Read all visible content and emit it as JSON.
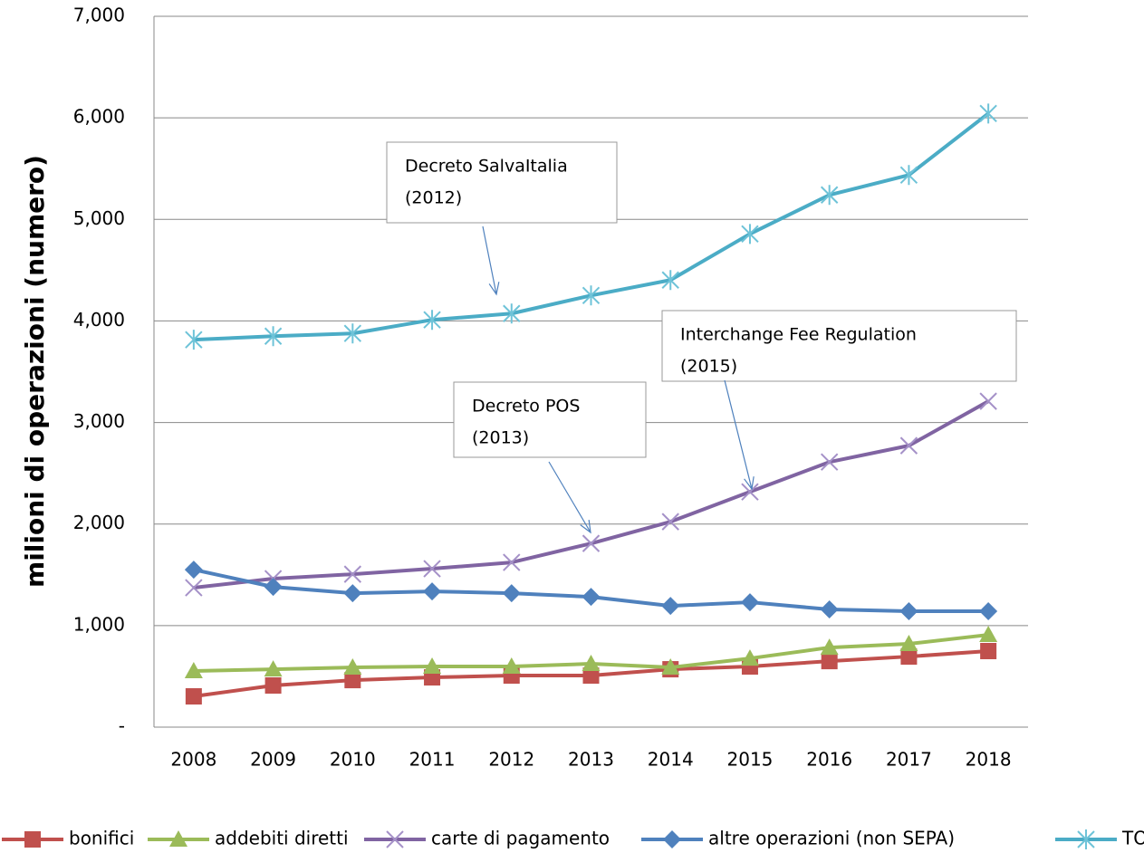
{
  "chart_data": {
    "type": "line",
    "y_label": "milioni di operazioni (numero)",
    "categories": [
      "2008",
      "2009",
      "2010",
      "2011",
      "2012",
      "2013",
      "2014",
      "2015",
      "2016",
      "2017",
      "2018"
    ],
    "ylim": [
      0,
      7000
    ],
    "yticks": [
      {
        "value": 0,
        "label": "-"
      },
      {
        "value": 1000,
        "label": "1,000"
      },
      {
        "value": 2000,
        "label": "2,000"
      },
      {
        "value": 3000,
        "label": "3,000"
      },
      {
        "value": 4000,
        "label": "4,000"
      },
      {
        "value": 5000,
        "label": "5,000"
      },
      {
        "value": 6000,
        "label": "6,000"
      },
      {
        "value": 7000,
        "label": "7,000"
      }
    ],
    "grid": true,
    "legend": "bottom",
    "series": [
      {
        "name": "bonifici",
        "color": "#c0504d",
        "marker": "square",
        "values": [
          303,
          410,
          463,
          490,
          508,
          508,
          570,
          597,
          650,
          695,
          749
        ]
      },
      {
        "name": "addebiti diretti",
        "color": "#9bbb59",
        "marker": "triangle",
        "values": [
          553,
          570,
          588,
          597,
          597,
          624,
          588,
          677,
          784,
          820,
          909
        ]
      },
      {
        "name": "carte di pagamento",
        "color": "#8064a2",
        "marker": "x",
        "values": [
          1373,
          1462,
          1506,
          1560,
          1622,
          1809,
          2023,
          2317,
          2611,
          2772,
          3209
        ]
      },
      {
        "name": "altre operazioni (non SEPA)",
        "color": "#4f81bd",
        "marker": "diamond",
        "values": [
          1551,
          1381,
          1319,
          1337,
          1319,
          1283,
          1194,
          1230,
          1159,
          1141,
          1141
        ]
      },
      {
        "name": "TOTALE",
        "color": "#4bacc6",
        "marker": "star",
        "values": [
          3815,
          3850,
          3877,
          4011,
          4073,
          4251,
          4403,
          4857,
          5241,
          5437,
          6043
        ]
      }
    ],
    "annotations": [
      {
        "lines": [
          "Decreto SalvaItalia",
          "(2012)"
        ]
      },
      {
        "lines": [
          "Decreto POS",
          "(2013)"
        ]
      },
      {
        "lines": [
          "Interchange Fee Regulation",
          "(2015)"
        ]
      }
    ]
  }
}
